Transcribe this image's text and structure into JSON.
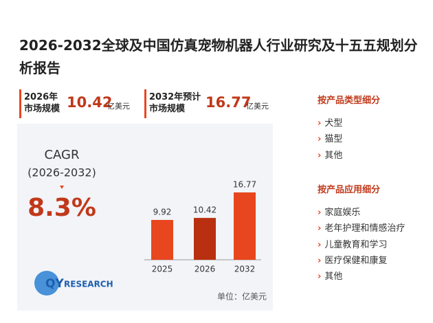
{
  "header": {
    "title": "2026-2032全球及中国仿真宠物机器人行业研究及十五五规划分析报告"
  },
  "stats": [
    {
      "label": [
        "2026年",
        "市场规模"
      ],
      "value": 10.42,
      "unit": "亿美元"
    },
    {
      "label": [
        "2032年预计",
        "市场规模"
      ],
      "value": 16.77,
      "unit": "亿美元"
    }
  ],
  "cagr": {
    "label": "CAGR",
    "period": "(2026-2032)",
    "value": "8.3%"
  },
  "logo": {
    "prefix": "QY",
    "suffix": "RESEARCH"
  },
  "chart_data": {
    "type": "bar",
    "unit": "单位：亿美元",
    "categories": [
      "2025",
      "2026",
      "2032"
    ],
    "values": [
      9.92,
      10.42,
      16.77
    ],
    "colors": [
      "#e8461e",
      "#b8300f",
      "#e8461e"
    ]
  },
  "segments": [
    {
      "heading": "按产品类型细分",
      "items": [
        "犬型",
        "猫型",
        "其他"
      ]
    },
    {
      "heading": "按产品应用细分",
      "items": [
        "家庭娱乐",
        "老年护理和情感治疗",
        "儿童教育和学习",
        "医疗保健和康复",
        "其他"
      ]
    }
  ]
}
